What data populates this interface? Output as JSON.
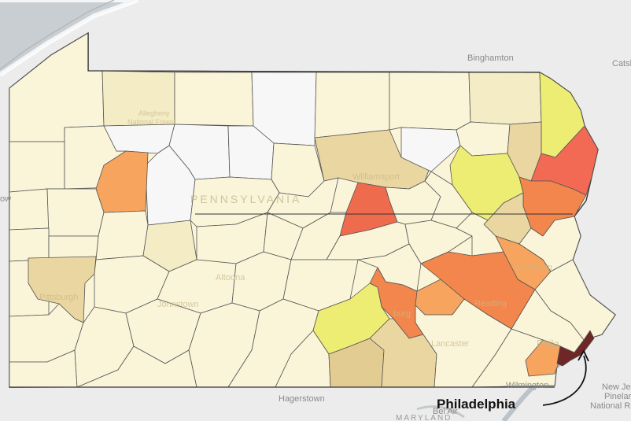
{
  "basemap_labels": {
    "binghamton": "Binghamton",
    "catskill": "Catsk",
    "hagerstown": "Hagerstown",
    "maryland": "MARYLAND",
    "bel_air": "Bel Air",
    "wilmington": "Wilmington",
    "new_jersey_line1": "New Jer",
    "new_jersey_line2": "Pinelar",
    "new_jersey_line3": "National Re",
    "left_edge": "ow"
  },
  "map_labels": {
    "state": "PENNSYLVANIA",
    "williamsport": "Williamsport",
    "pittsburgh": "Pittsburgh",
    "altoona": "Altoona",
    "johnstown": "Johnstown",
    "reading": "Reading",
    "allentown": "Allentown",
    "lancaster": "Lancaster",
    "harrisburg": "burg",
    "philadelphia_faint": "Phila",
    "allegheny_line1": "Allegheny",
    "allegheny_line2": "National Forest"
  },
  "callout": {
    "label": "Philadelphia",
    "highlight_county": "Philadelphia"
  },
  "colors": {
    "background": "#e8e8e8",
    "water": "#c9ced2",
    "outside_land": "#ececec",
    "county_border": "#555555",
    "no_data": "#f7f7f7",
    "level_1": "#faf4d8",
    "level_2": "#f4ecc5",
    "level_3": "#ead6a0",
    "level_4": "#e3cc92",
    "level_5": "#eded74",
    "level_6": "#f6a45e",
    "level_7": "#f2864c",
    "level_8": "#ef6b4e",
    "level_9": "#f26a53",
    "level_10": "#6e2626"
  },
  "highlighted_counties": [
    {
      "name": "Philadelphia",
      "level": "level_10"
    },
    {
      "name": "Pike",
      "level": "level_9"
    },
    {
      "name": "Union",
      "level": "level_8"
    },
    {
      "name": "Monroe",
      "level": "level_7"
    },
    {
      "name": "Northampton",
      "level": "level_7"
    },
    {
      "name": "Lehigh",
      "level": "level_6"
    },
    {
      "name": "Berks",
      "level": "level_7"
    },
    {
      "name": "Lebanon",
      "level": "level_6"
    },
    {
      "name": "Dauphin",
      "level": "level_7"
    },
    {
      "name": "Delaware",
      "level": "level_6"
    },
    {
      "name": "Clarion",
      "level": "level_6"
    },
    {
      "name": "Wayne",
      "level": "level_5"
    },
    {
      "name": "Luzerne",
      "level": "level_5"
    },
    {
      "name": "Cumberland",
      "level": "level_5"
    },
    {
      "name": "Allegheny",
      "level": "level_3"
    },
    {
      "name": "Lycoming",
      "level": "level_3"
    },
    {
      "name": "York",
      "level": "level_3"
    },
    {
      "name": "Adams",
      "level": "level_4"
    },
    {
      "name": "Lackawanna",
      "level": "level_3"
    },
    {
      "name": "Carbon",
      "level": "level_3"
    },
    {
      "name": "Forest",
      "level": "no_data"
    },
    {
      "name": "Elk",
      "level": "no_data"
    },
    {
      "name": "Cameron",
      "level": "no_data"
    },
    {
      "name": "Potter",
      "level": "no_data"
    },
    {
      "name": "Sullivan",
      "level": "no_data"
    }
  ]
}
